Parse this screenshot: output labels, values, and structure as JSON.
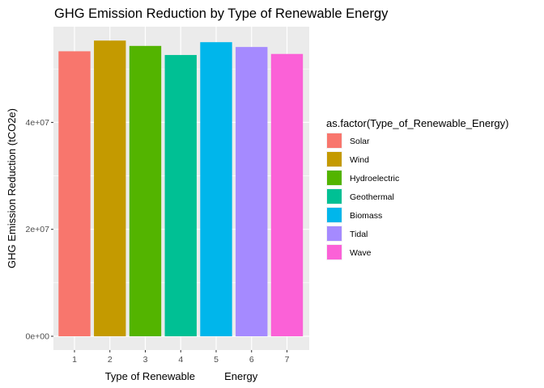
{
  "chart_data": {
    "type": "bar",
    "title": "GHG Emission Reduction by Type of Renewable Energy",
    "xlabel": "Type of Renewable          Energy",
    "ylabel": "GHG Emission Reduction (tCO2e)",
    "categories": [
      "1",
      "2",
      "3",
      "4",
      "5",
      "6",
      "7"
    ],
    "values": [
      53300000,
      55300000,
      54300000,
      52600000,
      55000000,
      54100000,
      52800000
    ],
    "ylim": [
      0,
      57900000
    ],
    "yticks": [
      0,
      20000000,
      40000000
    ],
    "ytick_labels": [
      "0e+00",
      "2e+07",
      "4e+07"
    ],
    "grid": true,
    "legend": {
      "title": "as.factor(Type_of_Renewable_Energy)",
      "position": "right",
      "entries": [
        "Solar",
        "Wind",
        "Hydroelectric",
        "Geothermal",
        "Biomass",
        "Tidal",
        "Wave"
      ]
    },
    "colors": [
      "#F8766D",
      "#C49A00",
      "#53B400",
      "#00C094",
      "#00B6EB",
      "#A58AFF",
      "#FB61D7"
    ],
    "panel_background": "#EBEBEB",
    "grid_color": "#FFFFFF"
  }
}
